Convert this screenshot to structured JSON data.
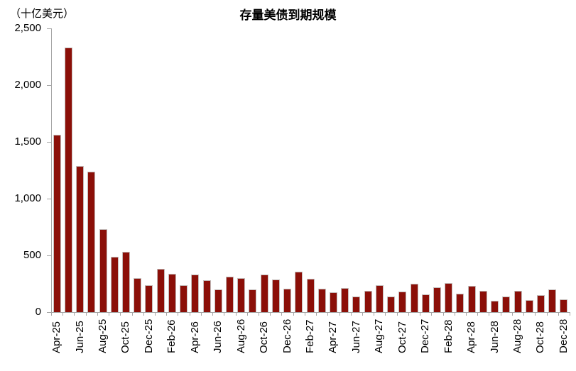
{
  "figure": {
    "title": "存量美债到期规模",
    "unit_label": "（十亿美元）"
  },
  "chart_data": {
    "type": "bar",
    "title": "存量美债到期规模",
    "unit_label": "（十亿美元）",
    "x": [
      "Apr-25",
      "May-25",
      "Jun-25",
      "Jul-25",
      "Aug-25",
      "Sep-25",
      "Oct-25",
      "Nov-25",
      "Dec-25",
      "Jan-26",
      "Feb-26",
      "Mar-26",
      "Apr-26",
      "May-26",
      "Jun-26",
      "Jul-26",
      "Aug-26",
      "Sep-26",
      "Oct-26",
      "Nov-26",
      "Dec-26",
      "Jan-27",
      "Feb-27",
      "Mar-27",
      "Apr-27",
      "May-27",
      "Jun-27",
      "Jul-27",
      "Aug-27",
      "Sep-27",
      "Oct-27",
      "Nov-27",
      "Dec-27",
      "Jan-28",
      "Feb-28",
      "Mar-28",
      "Apr-28",
      "May-28",
      "Jun-28",
      "Jul-28",
      "Aug-28",
      "Sep-28",
      "Oct-28",
      "Nov-28",
      "Dec-28"
    ],
    "values": [
      1565,
      2330,
      1290,
      1240,
      730,
      490,
      530,
      300,
      235,
      380,
      335,
      240,
      330,
      280,
      200,
      315,
      300,
      200,
      330,
      290,
      205,
      355,
      295,
      205,
      175,
      215,
      140,
      185,
      235,
      140,
      180,
      250,
      155,
      220,
      255,
      160,
      230,
      190,
      100,
      135,
      190,
      105,
      150,
      200,
      110
    ],
    "x_tick_label_step": 2,
    "y_ticks": [
      0,
      500,
      1000,
      1500,
      2000,
      2500
    ],
    "y_tick_labels": [
      "0",
      "500",
      "1,000",
      "1,500",
      "2,000",
      "2,500"
    ],
    "ylim": [
      0,
      2500
    ],
    "grid": false,
    "legend": null,
    "bar_color": "#8B0F08",
    "axis_color": "#A6A6A6",
    "text_color": "#000000"
  }
}
